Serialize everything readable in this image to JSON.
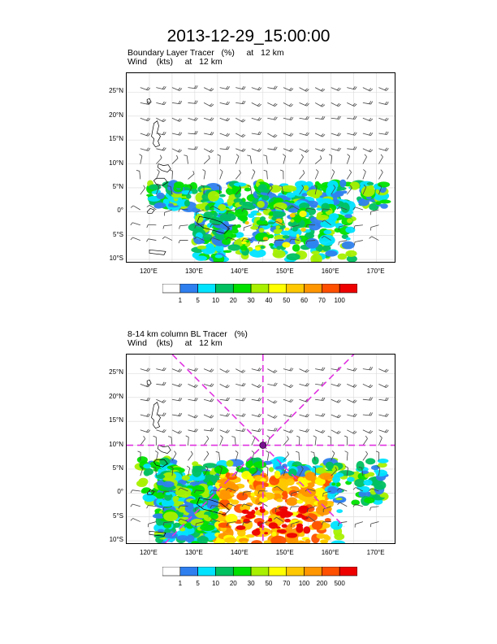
{
  "title": "2013-12-29_15:00:00",
  "colors": {
    "scale": [
      "#ffffff",
      "#2f7fef",
      "#00e3ff",
      "#00c060",
      "#00e000",
      "#a8f000",
      "#ffff00",
      "#ffc800",
      "#ff9600",
      "#ff5000",
      "#ee0000"
    ],
    "overlay_line": "#e032e0",
    "wind_barb": "#444444",
    "coast": "#000000"
  },
  "panels": [
    {
      "id": "boundary-layer",
      "title_line1": "Boundary Layer Tracer   (%)     at   12 km",
      "title_line2": "Wind    (kts)     at   12 km",
      "lat_labels": [
        "25°N",
        "20°N",
        "15°N",
        "10°N",
        "5°N",
        "0°",
        "5°S",
        "10°S"
      ],
      "lon_labels": [
        "120°E",
        "130°E",
        "140°E",
        "150°E",
        "160°E",
        "170°E"
      ],
      "colorbar_labels": [
        "1",
        "5",
        "10",
        "20",
        "30",
        "40",
        "50",
        "60",
        "70",
        "100"
      ]
    },
    {
      "id": "column-bl",
      "title_line1": "8-14 km column BL Tracer   (%)",
      "title_line2": "Wind    (kts)     at   12 km",
      "lat_labels": [
        "25°N",
        "20°N",
        "15°N",
        "10°N",
        "5°N",
        "0°",
        "5°S",
        "10°S"
      ],
      "lon_labels": [
        "120°E",
        "130°E",
        "140°E",
        "150°E",
        "160°E",
        "170°E"
      ],
      "colorbar_labels": [
        "1",
        "5",
        "10",
        "20",
        "30",
        "50",
        "70",
        "100",
        "200",
        "500"
      ],
      "overlay": {
        "center_lon": 145,
        "center_lat": 10
      }
    }
  ]
}
